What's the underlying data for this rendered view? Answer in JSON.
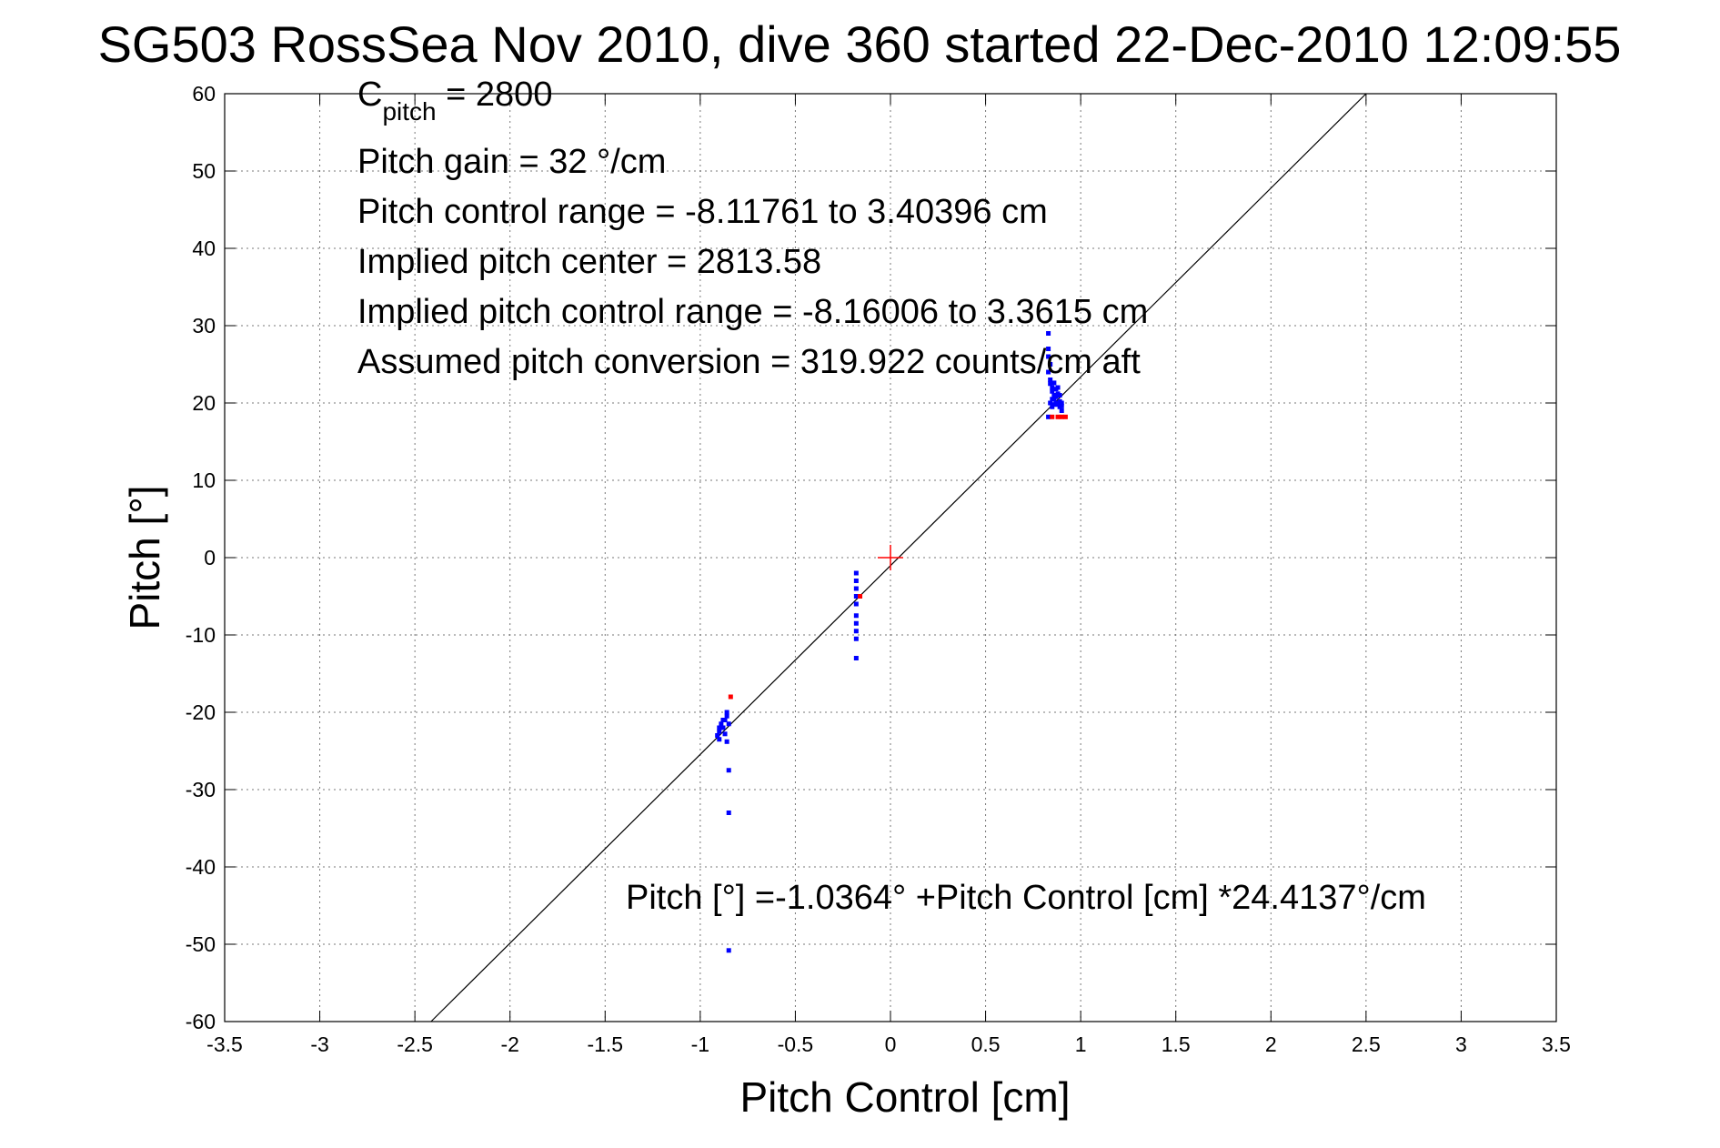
{
  "chart_data": {
    "type": "scatter",
    "title": "SG503 RossSea Nov 2010, dive 360 started 22-Dec-2010 12:09:55",
    "xlabel": "Pitch Control [cm]",
    "ylabel": "Pitch [°]",
    "xlim": [
      -3.5,
      3.5
    ],
    "ylim": [
      -60,
      60
    ],
    "xticks": [
      -3.5,
      -3,
      -2.5,
      -2,
      -1.5,
      -1,
      -0.5,
      0,
      0.5,
      1,
      1.5,
      2,
      2.5,
      3,
      3.5
    ],
    "yticks": [
      -60,
      -50,
      -40,
      -30,
      -20,
      -10,
      0,
      10,
      20,
      30,
      40,
      50,
      60
    ],
    "grid": true,
    "annotations": {
      "c_pitch_main": "C",
      "c_pitch_sub": "pitch",
      "c_pitch_value": " = 2800",
      "lines": [
        "Pitch gain = 32 °/cm",
        "Pitch control range = -8.11761 to 3.40396 cm",
        "Implied pitch center = 2813.58",
        "Implied pitch control range = -8.16006 to 3.3615 cm",
        "Assumed pitch conversion = 319.922 counts/cm aft"
      ],
      "fit_equation": "Pitch [°] =-1.0364° +Pitch Control [cm] *24.4137°/cm"
    },
    "fit_line": {
      "intercept": -1.0364,
      "slope": 24.4137,
      "color": "#000000"
    },
    "center_marker": {
      "x": 0,
      "y": 0,
      "color": "#ff0000"
    },
    "series": [
      {
        "color": "#0000ff",
        "points": [
          [
            -0.88,
            -21.0
          ],
          [
            -0.89,
            -21.5
          ],
          [
            -0.9,
            -22.0
          ],
          [
            -0.9,
            -22.5
          ],
          [
            -0.91,
            -23.0
          ],
          [
            -0.9,
            -23.5
          ],
          [
            -0.88,
            -22.0
          ],
          [
            -0.87,
            -21.0
          ],
          [
            -0.86,
            -20.5
          ],
          [
            -0.86,
            -20.0
          ],
          [
            -0.85,
            -21.5
          ],
          [
            -0.86,
            -23.8
          ],
          [
            -0.87,
            -22.8
          ],
          [
            -0.85,
            -27.5
          ],
          [
            -0.85,
            -33.0
          ],
          [
            -0.85,
            -50.8
          ],
          [
            -0.18,
            -2.0
          ],
          [
            -0.18,
            -3.0
          ],
          [
            -0.18,
            -4.0
          ],
          [
            -0.18,
            -5.0
          ],
          [
            -0.18,
            -6.0
          ],
          [
            -0.18,
            -7.5
          ],
          [
            -0.18,
            -8.5
          ],
          [
            -0.18,
            -9.5
          ],
          [
            -0.18,
            -10.5
          ],
          [
            -0.18,
            -13.0
          ],
          [
            0.83,
            29.0
          ],
          [
            0.83,
            27.0
          ],
          [
            0.83,
            26.0
          ],
          [
            0.84,
            25.0
          ],
          [
            0.83,
            24.0
          ],
          [
            0.84,
            23.0
          ],
          [
            0.84,
            22.5
          ],
          [
            0.85,
            22.0
          ],
          [
            0.85,
            21.5
          ],
          [
            0.86,
            21.0
          ],
          [
            0.86,
            20.5
          ],
          [
            0.87,
            20.0
          ],
          [
            0.88,
            19.8
          ],
          [
            0.89,
            19.5
          ],
          [
            0.9,
            19.0
          ],
          [
            0.84,
            20.0
          ],
          [
            0.85,
            20.5
          ],
          [
            0.86,
            19.8
          ],
          [
            0.87,
            20.8
          ],
          [
            0.88,
            21.2
          ],
          [
            0.89,
            20.2
          ],
          [
            0.9,
            19.6
          ],
          [
            0.88,
            22.0
          ],
          [
            0.87,
            21.8
          ],
          [
            0.85,
            19.5
          ],
          [
            0.83,
            18.2
          ],
          [
            0.86,
            22.6
          ],
          [
            0.89,
            21.0
          ],
          [
            0.9,
            20.0
          ]
        ]
      },
      {
        "color": "#ff0000",
        "points": [
          [
            -0.84,
            -18.0
          ],
          [
            -0.16,
            -5.0
          ],
          [
            0.85,
            18.2
          ],
          [
            0.88,
            18.2
          ],
          [
            0.9,
            18.2
          ],
          [
            0.92,
            18.2
          ]
        ]
      }
    ]
  }
}
